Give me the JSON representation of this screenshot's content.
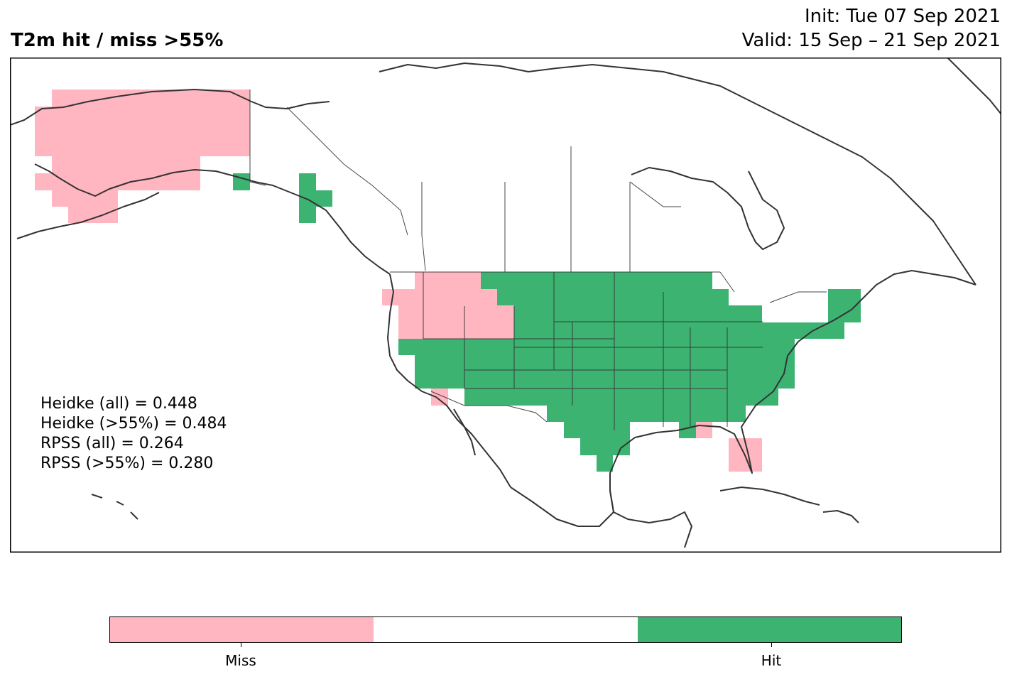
{
  "header": {
    "title": "T2m hit / miss  >55%",
    "init": "Init: Tue 07 Sep 2021",
    "valid": "Valid: 15 Sep – 21 Sep 2021"
  },
  "scores": [
    "Heidke (all) = 0.448",
    "Heidke (>55%) = 0.484",
    "RPSS (all) = 0.264",
    "RPSS (>55%) = 0.280"
  ],
  "colorbar": {
    "segments": [
      {
        "label": "Miss",
        "color": "#ffb6c1"
      },
      {
        "label": "",
        "color": "#ffffff"
      },
      {
        "label": "Hit",
        "color": "#3cb371"
      }
    ]
  },
  "colors": {
    "miss": "#ffb6c1",
    "hit": "#3cb371",
    "coastline": "#333333",
    "frame": "#000000"
  }
}
